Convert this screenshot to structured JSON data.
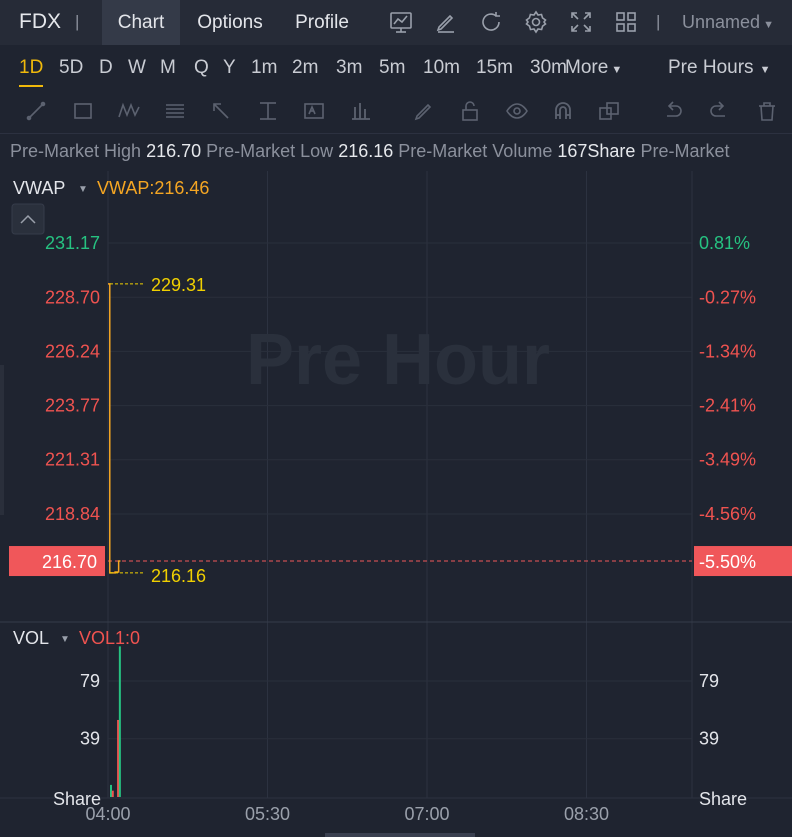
{
  "header": {
    "ticker": "FDX",
    "separator": "|",
    "tabs": [
      "Chart",
      "Options",
      "Profile"
    ],
    "layout_name": "Unnamed",
    "icons": [
      "indicator-icon",
      "draw-icon",
      "refresh-icon",
      "settings-icon",
      "fullscreen-icon",
      "layout-grid-icon"
    ]
  },
  "intervals": {
    "items": [
      "1D",
      "5D",
      "D",
      "W",
      "M",
      "Q",
      "Y",
      "1m",
      "2m",
      "3m",
      "5m",
      "10m",
      "15m",
      "30m"
    ],
    "active": "1D",
    "more_label": "More",
    "session_label": "Pre Hours"
  },
  "drawing_tools": [
    "trend-line-icon",
    "rectangle-icon",
    "pattern-icon",
    "fib-icon",
    "arrow-icon",
    "measure-icon",
    "text-icon",
    "bars-icon",
    "pencil-icon",
    "lock-icon",
    "eye-icon",
    "magnet-icon",
    "clone-icon",
    "undo-icon",
    "redo-icon",
    "trash-icon"
  ],
  "info": {
    "high_label": "Pre-Market High",
    "high_value": "216.70",
    "low_label": "Pre-Market Low",
    "low_value": "216.16",
    "volume_label": "Pre-Market Volume",
    "volume_value": "167Share",
    "extra_label": "Pre-Market"
  },
  "colors": {
    "background": "#1f2430",
    "up": "#26c281",
    "down": "#ef5350",
    "price_line": "#f5a623",
    "annotation": "#f0d000",
    "last_price_bg": "#f0575a"
  },
  "chart_data": {
    "type": "line",
    "watermark": "Pre Hour",
    "price_panel": {
      "indicator_label": "VWAP",
      "indicator_value_label": "VWAP:216.46",
      "y_ticks": [
        "231.17",
        "228.70",
        "226.24",
        "223.77",
        "221.31",
        "218.84"
      ],
      "y_tick_values": [
        231.17,
        228.7,
        226.24,
        223.77,
        221.31,
        218.84
      ],
      "pct_ticks": [
        "0.81%",
        "-0.27%",
        "-1.34%",
        "-2.41%",
        "-3.49%",
        "-4.56%"
      ],
      "last_price": "216.70",
      "last_pct": "-5.50%",
      "ylim": [
        216.7,
        231.17
      ],
      "series": [
        {
          "name": "Price",
          "x": [
            "04:00",
            "04:01",
            "04:02",
            "04:03",
            "04:04",
            "04:05",
            "04:06",
            "04:07"
          ],
          "values": [
            229.31,
            216.16,
            216.16,
            216.16,
            216.2,
            216.2,
            216.7,
            216.7
          ]
        }
      ],
      "annotations": [
        {
          "label": "229.31",
          "value": 229.31
        },
        {
          "label": "216.16",
          "value": 216.16
        }
      ]
    },
    "volume_panel": {
      "indicator_label": "VOL",
      "indicator_value_label": "VOL1:0",
      "y_ticks": [
        "79",
        "39"
      ],
      "y_tick_values": [
        79,
        39
      ],
      "unit_label": "Share",
      "ylim": [
        0,
        110
      ],
      "bars": [
        {
          "x": "04:00",
          "value": 7,
          "dir": "up"
        },
        {
          "x": "04:01",
          "value": 3,
          "dir": "down"
        },
        {
          "x": "04:04",
          "value": 52,
          "dir": "down"
        },
        {
          "x": "04:05",
          "value": 103,
          "dir": "up"
        }
      ]
    },
    "x_ticks": [
      "04:00",
      "05:30",
      "07:00",
      "08:30"
    ],
    "xlim_minutes": [
      0,
      330
    ],
    "x_tick_minutes": [
      0,
      90,
      180,
      270
    ],
    "grid": true
  }
}
